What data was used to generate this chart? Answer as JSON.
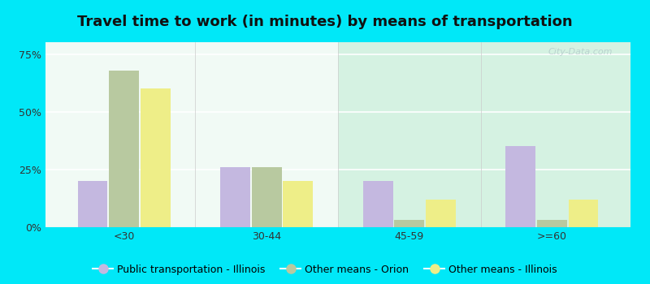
{
  "title": "Travel time to work (in minutes) by means of transportation",
  "categories": [
    "<30",
    "30-44",
    "45-59",
    ">=60"
  ],
  "series": {
    "Public transportation - Illinois": [
      20,
      26,
      20,
      35
    ],
    "Other means - Orion": [
      68,
      26,
      3,
      3
    ],
    "Other means - Illinois": [
      60,
      20,
      12,
      12
    ]
  },
  "colors": {
    "Public transportation - Illinois": "#c4b8e0",
    "Other means - Orion": "#b8c9a0",
    "Other means - Illinois": "#eeee88"
  },
  "bar_width": 0.22,
  "ylim": [
    0,
    80
  ],
  "yticks": [
    0,
    25,
    50,
    75
  ],
  "ytick_labels": [
    "0%",
    "25%",
    "50%",
    "75%"
  ],
  "outer_background": "#00e8f8",
  "plot_bg_color": "#e8f5ee",
  "title_fontsize": 13,
  "axis_fontsize": 9,
  "legend_fontsize": 9,
  "watermark_text": "City-Data.com"
}
